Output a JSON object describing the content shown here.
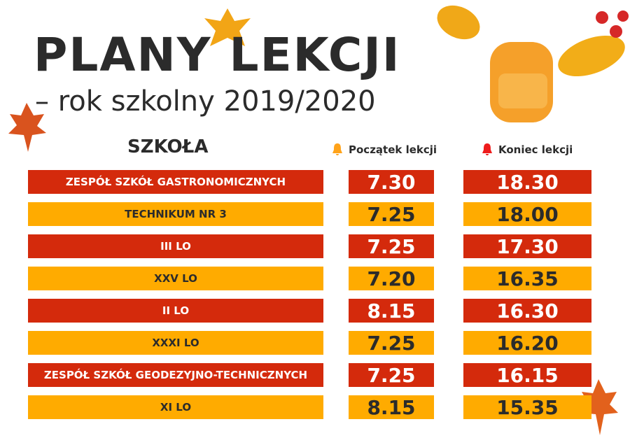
{
  "title": "PLANY LEKCJI",
  "subtitle": "– rok szkolny 2019/2020",
  "headers": {
    "school": "SZKOŁA",
    "start": "Początek lekcji",
    "end": "Koniec lekcji"
  },
  "colors": {
    "red": "#d42a0c",
    "orange": "#ffab00",
    "start_bell": "#ffa31a",
    "end_bell": "#ee1c1c"
  },
  "rows": [
    {
      "school": "ZESPÓŁ SZKÓŁ GASTRONOMICZNYCH",
      "start": "7.30",
      "end": "18.30",
      "color": "red"
    },
    {
      "school": "TECHNIKUM NR 3",
      "start": "7.25",
      "end": "18.00",
      "color": "orange"
    },
    {
      "school": "III LO",
      "start": "7.25",
      "end": "17.30",
      "color": "red"
    },
    {
      "school": "XXV LO",
      "start": "7.20",
      "end": "16.35",
      "color": "orange"
    },
    {
      "school": "II LO",
      "start": "8.15",
      "end": "16.30",
      "color": "red"
    },
    {
      "school": "XXXI LO",
      "start": "7.25",
      "end": "16.20",
      "color": "orange"
    },
    {
      "school": "ZESPÓŁ SZKÓŁ GEODEZYJNO-TECHNICZNYCH",
      "start": "7.25",
      "end": "16.15",
      "color": "red"
    },
    {
      "school": "XI LO",
      "start": "8.15",
      "end": "15.35",
      "color": "orange"
    }
  ]
}
